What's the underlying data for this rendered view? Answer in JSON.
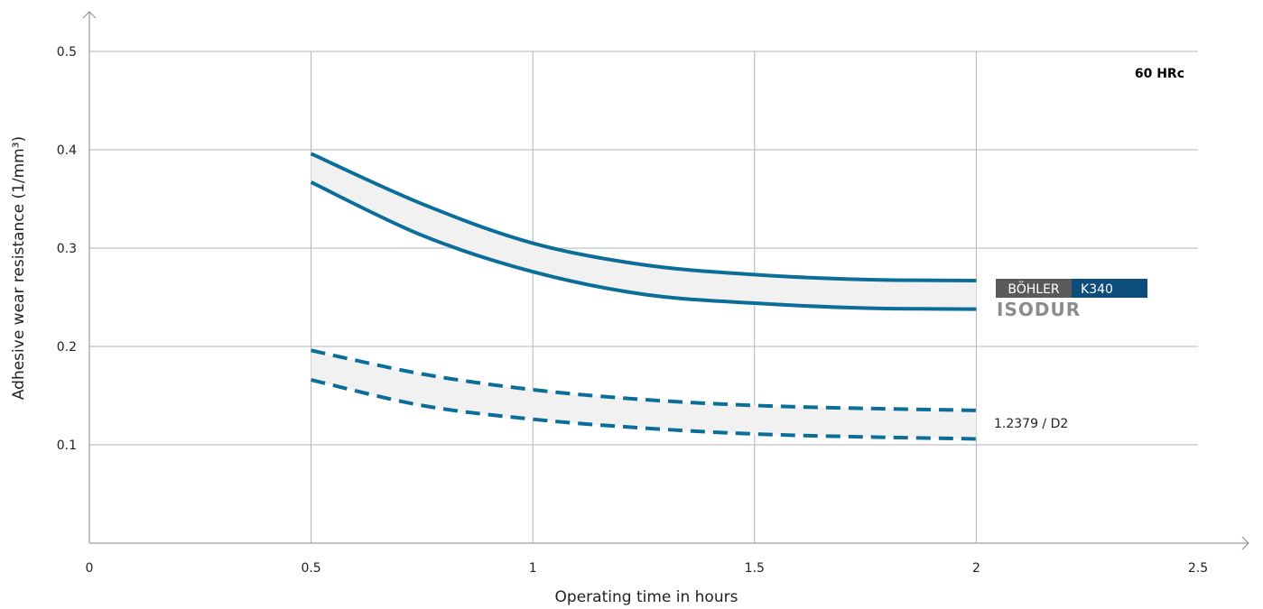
{
  "chart_data": {
    "type": "line",
    "xlabel": "Operating time in hours",
    "ylabel": "Adhesive wear resistance (1/mm³)",
    "xlim": [
      0,
      2.5
    ],
    "ylim": [
      0,
      0.5
    ],
    "x_ticks": [
      "0",
      "0.5",
      "1",
      "1.5",
      "2",
      "2.5"
    ],
    "y_ticks": [
      "0.1",
      "0.2",
      "0.3",
      "0.4",
      "0.5"
    ],
    "grid": true,
    "annotation": "60 HRc",
    "bands": [
      {
        "name": "BÖHLER K340 ISODUR",
        "style": "solid",
        "upper": {
          "x": [
            0.5,
            0.75,
            1.0,
            1.25,
            1.5,
            1.75,
            2.0
          ],
          "y": [
            0.396,
            0.345,
            0.305,
            0.283,
            0.273,
            0.268,
            0.267
          ]
        },
        "lower": {
          "x": [
            0.5,
            0.75,
            1.0,
            1.25,
            1.5,
            1.75,
            2.0
          ],
          "y": [
            0.367,
            0.313,
            0.276,
            0.253,
            0.244,
            0.239,
            0.238
          ]
        }
      },
      {
        "name": "1.2379 / D2",
        "style": "dashed",
        "upper": {
          "x": [
            0.5,
            0.75,
            1.0,
            1.25,
            1.5,
            1.75,
            2.0
          ],
          "y": [
            0.196,
            0.172,
            0.156,
            0.146,
            0.14,
            0.137,
            0.135
          ]
        },
        "lower": {
          "x": [
            0.5,
            0.75,
            1.0,
            1.25,
            1.5,
            1.75,
            2.0
          ],
          "y": [
            0.166,
            0.14,
            0.126,
            0.117,
            0.111,
            0.108,
            0.106
          ]
        }
      }
    ]
  },
  "legend": {
    "brand_left": "BÖHLER",
    "brand_right": "K340",
    "brand_sub": "ISODUR",
    "d2_label": "1.2379 / D2"
  },
  "colors": {
    "line": "#0b6e99",
    "band_fill": "#f1f1f1",
    "grid": "#b3b3b3",
    "axis": "#888888",
    "logo_dark": "#5a5a5a",
    "logo_blue": "#0d4d7a"
  }
}
